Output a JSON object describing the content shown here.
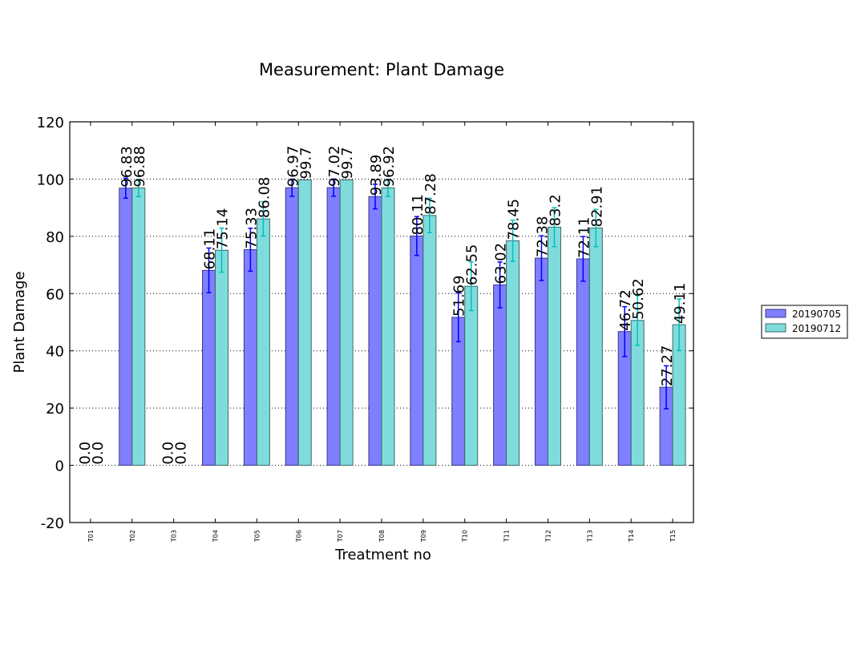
{
  "chart_data": {
    "type": "bar",
    "title": "Measurement: Plant Damage",
    "xlabel": "Treatment no",
    "ylabel": "Plant Damage",
    "ylim": [
      -20,
      120
    ],
    "yticks": [
      -20,
      0,
      20,
      40,
      60,
      80,
      100,
      120
    ],
    "grid": "horizontal dotted",
    "legend_position": "right",
    "categories": [
      "T01",
      "T02",
      "T03",
      "T04",
      "T05",
      "T06",
      "T07",
      "T08",
      "T09",
      "T10",
      "T11",
      "T12",
      "T13",
      "T14",
      "T15"
    ],
    "series": [
      {
        "name": "20190705",
        "color": "#7f7fff",
        "edge": "#3a3a8a",
        "err_color": "#0000ff",
        "values": [
          0,
          96.83,
          0,
          68.11,
          75.33,
          96.97,
          97.02,
          93.89,
          80.11,
          51.69,
          63.02,
          72.38,
          72.11,
          46.72,
          27.27
        ],
        "labels": [
          "0.0",
          "96.83",
          "0.0",
          "68.11",
          "75.33",
          "96.97",
          "97.02",
          "93.89",
          "80.11",
          "51.69",
          "63.02",
          "72.38",
          "72.11",
          "46.72",
          "27.27"
        ],
        "errors": [
          0,
          3.5,
          0,
          7.8,
          7.5,
          3.0,
          3.0,
          4.3,
          6.8,
          8.5,
          8.0,
          7.8,
          7.8,
          8.7,
          7.5
        ]
      },
      {
        "name": "20190712",
        "color": "#80dcdc",
        "edge": "#3a6a6a",
        "err_color": "#00bfbf",
        "values": [
          0,
          96.88,
          0,
          75.14,
          86.08,
          99.7,
          99.7,
          96.92,
          87.28,
          62.55,
          78.45,
          83.2,
          82.91,
          50.62,
          49.11
        ],
        "labels": [
          "0.0",
          "96.88",
          "0.0",
          "75.14",
          "86.08",
          "99.7",
          "99.7",
          "96.92",
          "87.28",
          "62.55",
          "78.45",
          "83.2",
          "82.91",
          "50.62",
          "49.11"
        ],
        "errors": [
          0,
          3.0,
          0,
          7.7,
          6.0,
          0,
          0,
          3.0,
          6.0,
          8.5,
          7.2,
          6.8,
          6.5,
          8.7,
          9.0
        ]
      }
    ]
  }
}
